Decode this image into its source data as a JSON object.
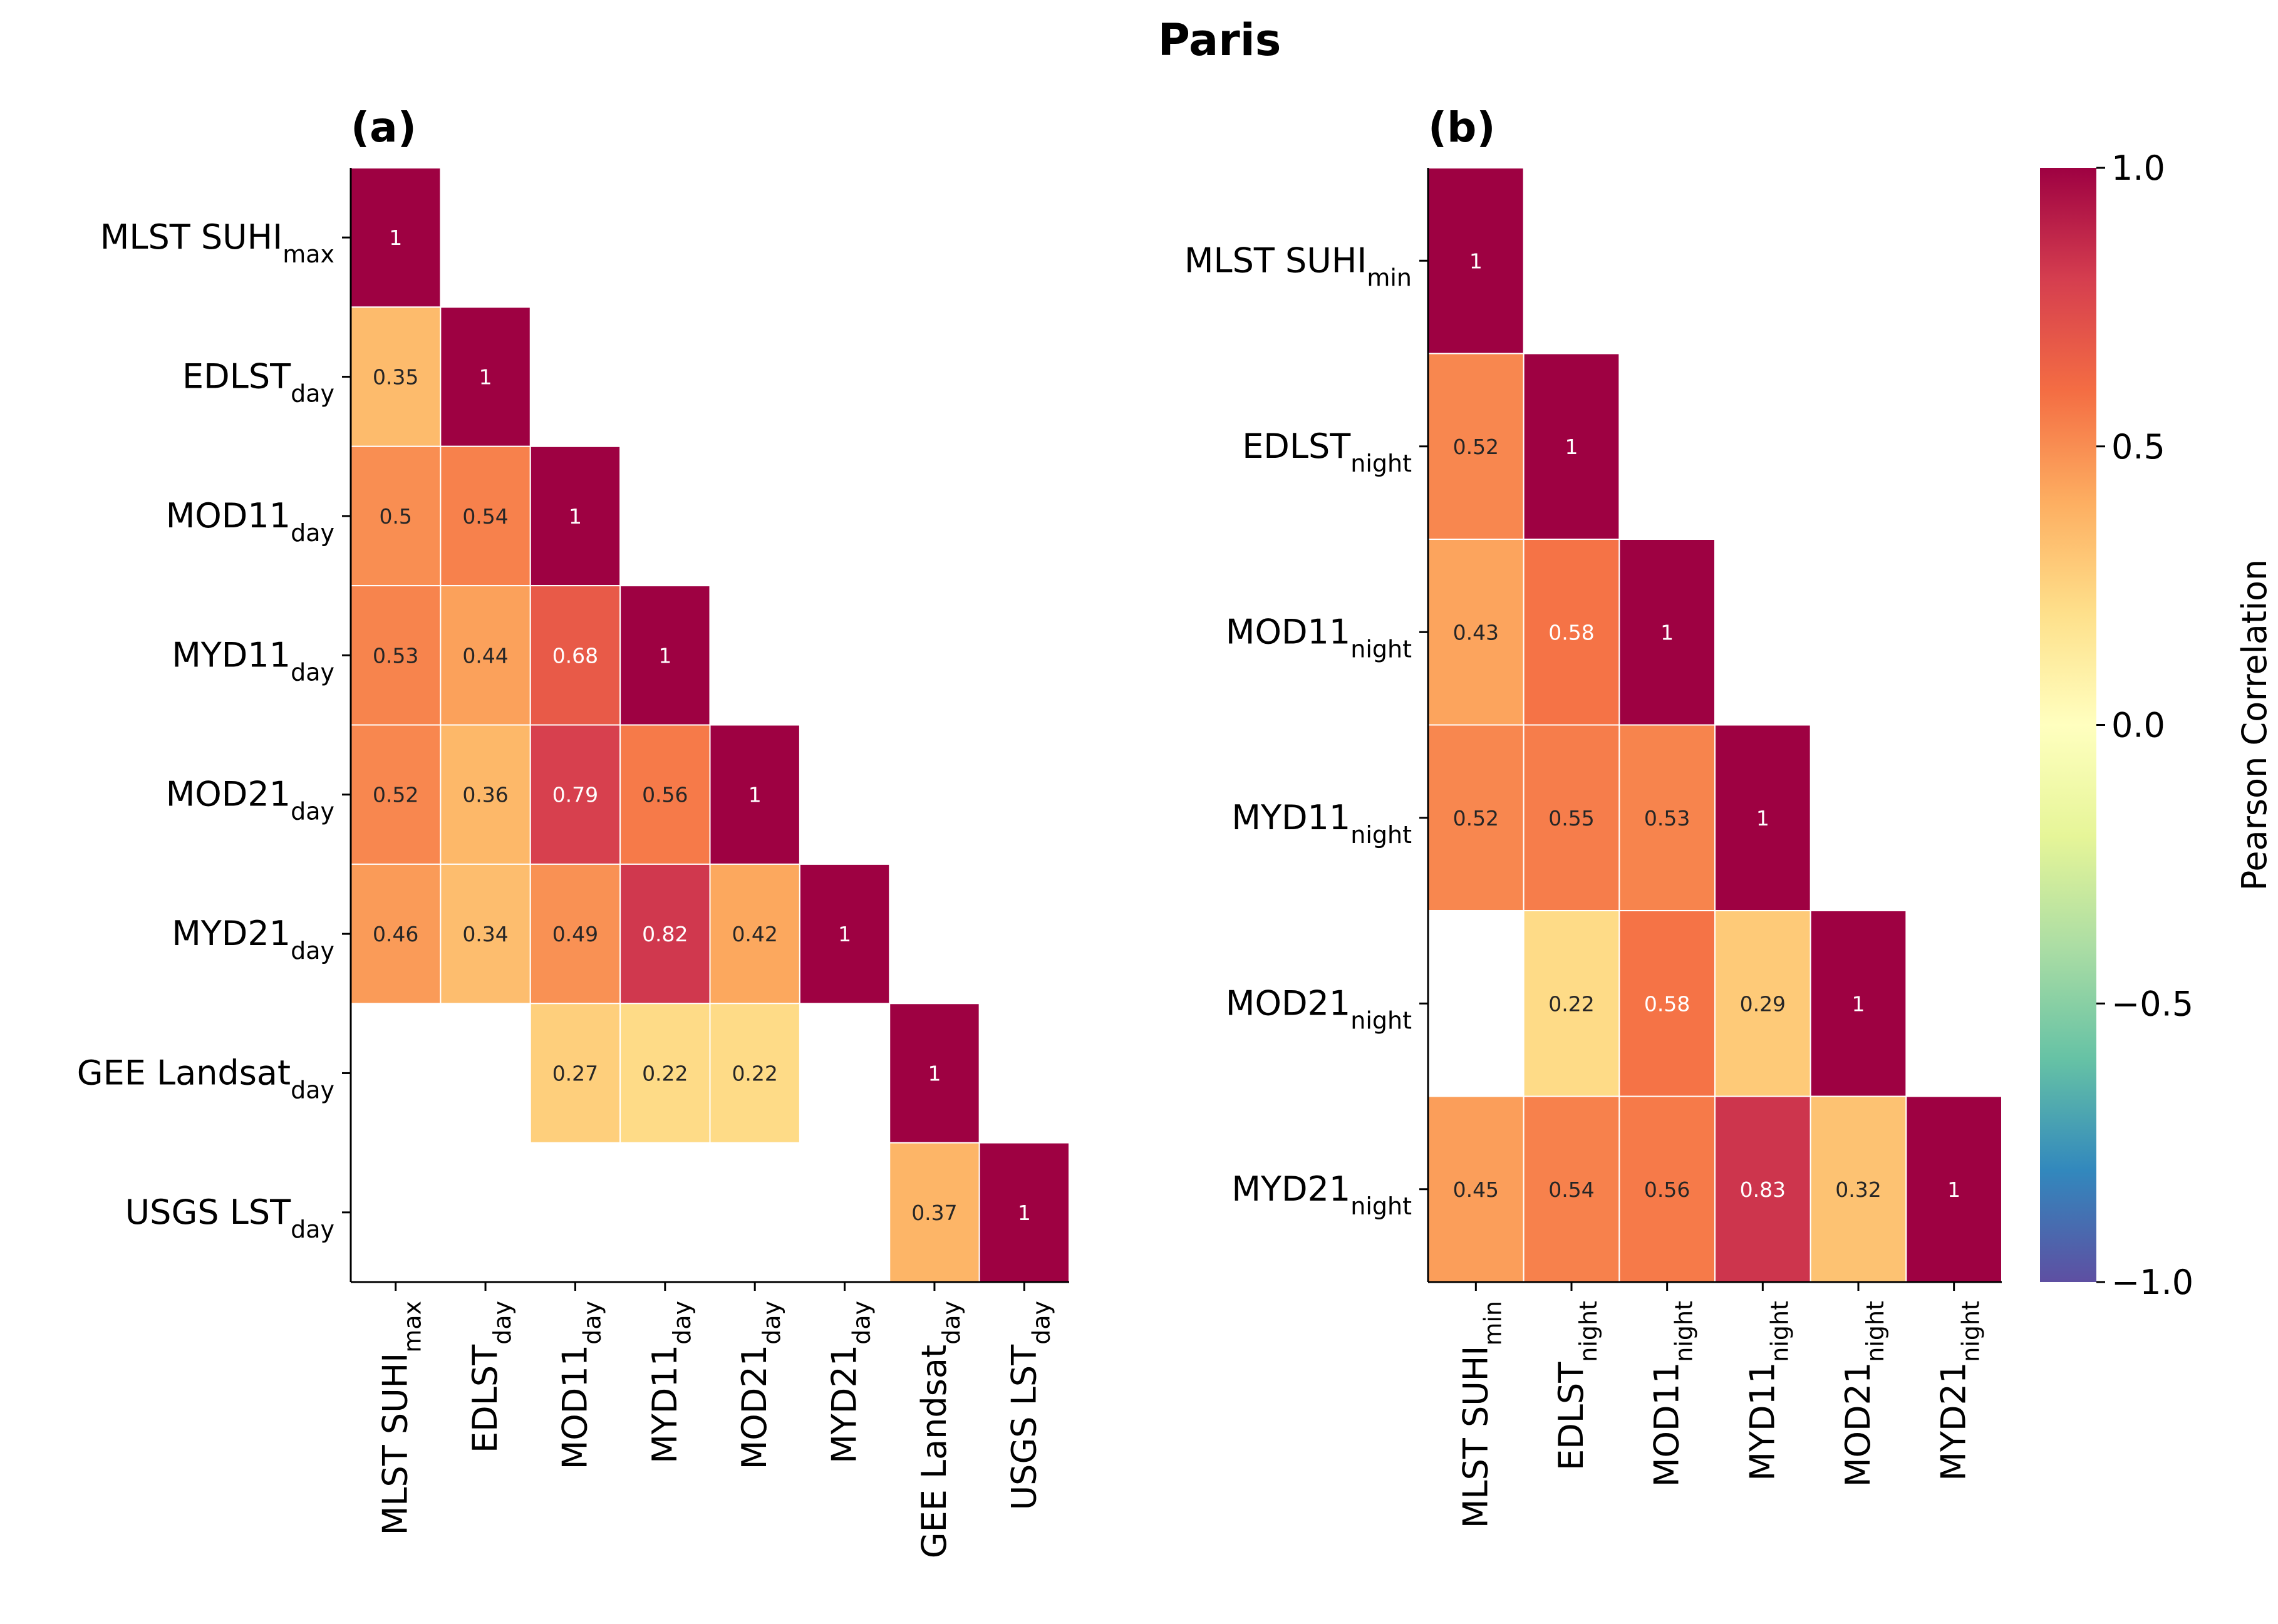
{
  "chart_data": [
    {
      "type": "heatmap",
      "panel_label": "(a)",
      "labels": [
        {
          "base": "MLST SUHI",
          "sub": "max"
        },
        {
          "base": "EDLST",
          "sub": "day"
        },
        {
          "base": "MOD11",
          "sub": "day"
        },
        {
          "base": "MYD11",
          "sub": "day"
        },
        {
          "base": "MOD21",
          "sub": "day"
        },
        {
          "base": "MYD21",
          "sub": "day"
        },
        {
          "base": "GEE Landsat",
          "sub": "day"
        },
        {
          "base": "USGS LST",
          "sub": "day"
        }
      ],
      "matrix": [
        [
          1
        ],
        [
          0.35,
          1
        ],
        [
          0.5,
          0.54,
          1
        ],
        [
          0.53,
          0.44,
          0.68,
          1
        ],
        [
          0.52,
          0.36,
          0.79,
          0.56,
          1
        ],
        [
          0.46,
          0.34,
          0.49,
          0.82,
          0.42,
          1
        ],
        [
          null,
          null,
          0.27,
          0.22,
          0.22,
          null,
          1
        ],
        [
          null,
          null,
          null,
          null,
          null,
          null,
          0.37,
          1
        ]
      ]
    },
    {
      "type": "heatmap",
      "panel_label": "(b)",
      "labels": [
        {
          "base": "MLST SUHI",
          "sub": "min"
        },
        {
          "base": "EDLST",
          "sub": "night"
        },
        {
          "base": "MOD11",
          "sub": "night"
        },
        {
          "base": "MYD11",
          "sub": "night"
        },
        {
          "base": "MOD21",
          "sub": "night"
        },
        {
          "base": "MYD21",
          "sub": "night"
        }
      ],
      "matrix": [
        [
          1
        ],
        [
          0.52,
          1
        ],
        [
          0.43,
          0.58,
          1
        ],
        [
          0.52,
          0.55,
          0.53,
          1
        ],
        [
          null,
          0.22,
          0.58,
          0.29,
          1
        ],
        [
          0.45,
          0.54,
          0.56,
          0.83,
          0.32,
          1
        ]
      ]
    }
  ],
  "title": "Paris",
  "colorbar": {
    "label": "Pearson Correlation",
    "range": [
      -1,
      1
    ],
    "ticks": [
      "1.0",
      "0.5",
      "0.0",
      "−0.5",
      "−1.0"
    ],
    "tick_values": [
      1,
      0.5,
      0,
      -0.5,
      -1
    ],
    "colormap": "Spectral",
    "stops": [
      "#5e4fa2",
      "#3288bd",
      "#66c2a5",
      "#abdda4",
      "#e6f598",
      "#ffffbf",
      "#fee08b",
      "#fdae61",
      "#f46d43",
      "#d53e4f",
      "#9e0142"
    ]
  }
}
